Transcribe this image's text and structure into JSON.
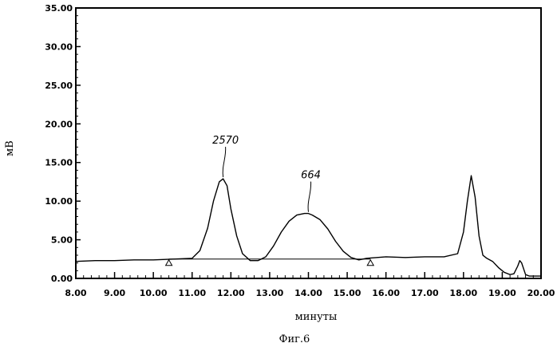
{
  "chart_data": {
    "type": "line",
    "title": "",
    "xlabel": "минуты",
    "ylabel": "мВ",
    "caption": "Фиг.6",
    "xlim": [
      8.0,
      20.0
    ],
    "ylim": [
      0.0,
      35.0
    ],
    "x_ticks": [
      "8.00",
      "9.00",
      "10.00",
      "11.00",
      "12.00",
      "13.00",
      "14.00",
      "15.00",
      "16.00",
      "17.00",
      "18.00",
      "19.00",
      "20.00"
    ],
    "y_ticks": [
      "0.00",
      "5.00",
      "10.00",
      "15.00",
      "20.00",
      "25.00",
      "30.00",
      "35.00"
    ],
    "grid": false,
    "series": [
      {
        "color": "#000000",
        "x": [
          8.0,
          8.5,
          9.0,
          9.5,
          10.0,
          10.5,
          11.0,
          11.2,
          11.4,
          11.55,
          11.7,
          11.8,
          11.9,
          12.0,
          12.15,
          12.3,
          12.5,
          12.7,
          12.9,
          13.1,
          13.3,
          13.5,
          13.7,
          13.9,
          14.0,
          14.1,
          14.3,
          14.5,
          14.7,
          14.9,
          15.1,
          15.3,
          15.5,
          16.0,
          16.5,
          17.0,
          17.5,
          17.85,
          18.0,
          18.1,
          18.2,
          18.3,
          18.4,
          18.5,
          18.6,
          18.75,
          18.9,
          19.05,
          19.2,
          19.3,
          19.4,
          19.45,
          19.5,
          19.6,
          19.7,
          20.0
        ],
        "y": [
          2.2,
          2.3,
          2.3,
          2.4,
          2.4,
          2.5,
          2.6,
          3.6,
          6.5,
          10.0,
          12.5,
          12.9,
          12.0,
          9.0,
          5.5,
          3.2,
          2.3,
          2.3,
          2.8,
          4.2,
          6.0,
          7.4,
          8.2,
          8.4,
          8.4,
          8.2,
          7.6,
          6.4,
          4.8,
          3.5,
          2.7,
          2.4,
          2.6,
          2.8,
          2.7,
          2.8,
          2.8,
          3.2,
          6.0,
          10.0,
          13.3,
          10.5,
          5.5,
          3.0,
          2.6,
          2.2,
          1.4,
          0.8,
          0.5,
          0.6,
          1.6,
          2.3,
          2.0,
          0.5,
          0.3,
          0.3
        ]
      }
    ],
    "baseline": {
      "x": [
        10.4,
        15.6
      ],
      "y": [
        2.5,
        2.5
      ]
    },
    "event_markers": [
      10.4,
      15.6
    ],
    "annotations": [
      {
        "text": "2570",
        "x": 11.8,
        "y": 12.9
      },
      {
        "text": "664",
        "x": 14.0,
        "y": 8.4
      }
    ]
  }
}
